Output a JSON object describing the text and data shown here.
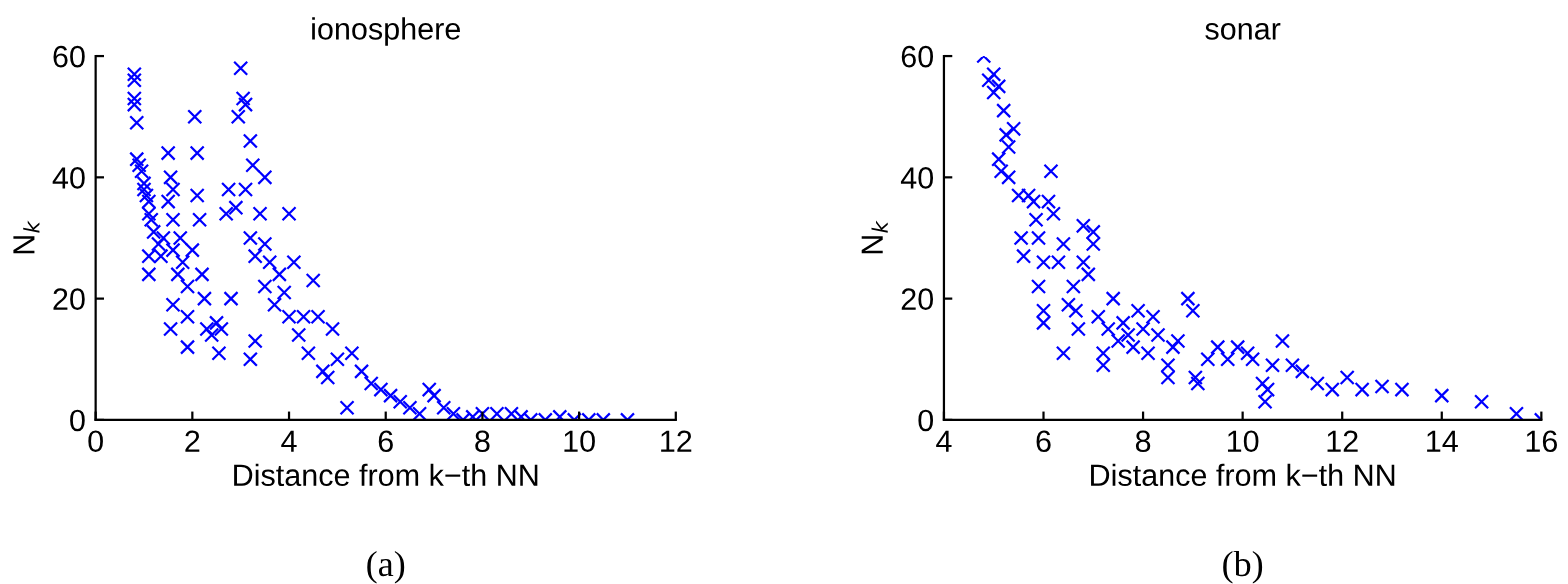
{
  "chart_data": [
    {
      "type": "scatter",
      "title": "ionosphere",
      "xlabel": "Distance from k−th NN",
      "ylabel": "N$_{k}$",
      "annotations": [
        "(a)"
      ],
      "marker": "cross",
      "grid": false,
      "legend": false,
      "xlim": [
        0,
        12
      ],
      "xticks": [
        0,
        2,
        4,
        6,
        8,
        10,
        12
      ],
      "ylim": [
        0,
        60
      ],
      "yticks": [
        0,
        20,
        40,
        60
      ],
      "series": [
        {
          "color": "#0000ff",
          "x": [
            0.8,
            0.8,
            0.8,
            0.8,
            0.85,
            0.85,
            0.9,
            0.95,
            1.0,
            1.0,
            1.05,
            1.1,
            1.1,
            1.15,
            1.2,
            1.1,
            1.1,
            1.3,
            1.35,
            1.4,
            1.5,
            1.5,
            1.55,
            1.6,
            1.6,
            1.6,
            1.6,
            1.55,
            1.7,
            1.75,
            1.8,
            1.9,
            1.9,
            1.9,
            2.0,
            2.05,
            2.1,
            2.1,
            2.15,
            2.2,
            2.25,
            2.3,
            2.4,
            2.5,
            2.55,
            2.6,
            2.7,
            2.8,
            2.75,
            2.9,
            2.95,
            3.0,
            3.05,
            3.1,
            3.1,
            3.2,
            3.25,
            3.2,
            3.3,
            3.3,
            3.2,
            3.4,
            3.5,
            3.5,
            3.5,
            3.6,
            3.7,
            3.8,
            3.9,
            4.0,
            4.0,
            4.1,
            4.2,
            4.3,
            4.4,
            4.5,
            4.6,
            4.7,
            4.8,
            4.9,
            5.0,
            5.2,
            5.3,
            5.5,
            5.7,
            5.9,
            6.1,
            6.3,
            6.5,
            6.7,
            6.9,
            7.0,
            7.2,
            7.4,
            7.6,
            7.8,
            8.0,
            8.3,
            8.6,
            8.8,
            9.0,
            9.3,
            9.6,
            9.9,
            10.2,
            10.5,
            11.0
          ],
          "values": [
            57,
            56,
            53,
            52,
            49,
            43,
            42,
            41,
            39,
            38,
            37,
            36,
            34,
            33,
            31,
            27,
            24,
            29,
            27,
            30,
            36,
            44,
            40,
            38,
            33,
            28,
            19,
            15,
            24,
            30,
            26,
            22,
            17,
            12,
            28,
            50,
            44,
            37,
            33,
            24,
            20,
            15,
            14,
            16,
            11,
            15,
            34,
            20,
            38,
            35,
            50,
            58,
            53,
            52,
            38,
            46,
            42,
            30,
            27,
            13,
            10,
            34,
            40,
            29,
            22,
            26,
            19,
            24,
            21,
            34,
            17,
            26,
            14,
            17,
            11,
            23,
            17,
            8,
            7,
            15,
            10,
            2,
            11,
            8,
            6,
            5,
            4,
            3,
            2,
            1,
            5,
            4,
            2,
            1,
            0,
            0.5,
            1,
            1,
            1,
            0.5,
            0,
            0,
            0.5,
            0,
            0,
            0,
            0
          ]
        }
      ]
    },
    {
      "type": "scatter",
      "title": "sonar",
      "xlabel": "Distance from k−th NN",
      "ylabel": "N$_{k}$",
      "annotations": [
        "(b)"
      ],
      "marker": "cross",
      "grid": false,
      "legend": false,
      "xlim": [
        4,
        16
      ],
      "xticks": [
        4,
        6,
        8,
        10,
        12,
        14,
        16
      ],
      "ylim": [
        0,
        60
      ],
      "yticks": [
        0,
        20,
        40,
        60
      ],
      "series": [
        {
          "color": "#0000ff",
          "x": [
            4.8,
            4.9,
            5.0,
            5.0,
            5.1,
            5.2,
            5.1,
            5.15,
            5.25,
            5.3,
            5.4,
            5.3,
            5.5,
            5.55,
            5.6,
            5.7,
            5.8,
            5.85,
            5.9,
            5.9,
            6.0,
            6.0,
            6.0,
            6.1,
            6.15,
            6.2,
            6.3,
            6.4,
            6.4,
            6.5,
            6.6,
            6.65,
            6.7,
            6.8,
            6.8,
            6.9,
            7.0,
            7.0,
            7.1,
            7.2,
            7.2,
            7.3,
            7.4,
            7.5,
            7.6,
            7.7,
            7.8,
            7.9,
            8.0,
            8.1,
            8.2,
            8.3,
            8.5,
            8.5,
            8.6,
            8.7,
            8.9,
            9.0,
            9.05,
            9.1,
            9.3,
            9.5,
            9.7,
            9.9,
            10.1,
            10.2,
            10.4,
            10.45,
            10.5,
            10.6,
            10.8,
            11.0,
            11.2,
            11.5,
            11.8,
            12.1,
            12.4,
            12.8,
            13.2,
            14.0,
            14.8,
            15.5,
            16.0
          ],
          "values": [
            60,
            56,
            54,
            57,
            55,
            51,
            43,
            41,
            47,
            45,
            48,
            40,
            37,
            30,
            27,
            37,
            36,
            33,
            30,
            22,
            18,
            16,
            26,
            36,
            41,
            34,
            26,
            29,
            11,
            19,
            22,
            18,
            15,
            26,
            32,
            24,
            31,
            29,
            17,
            9,
            11,
            15,
            20,
            13,
            16,
            14,
            12,
            18,
            15,
            11,
            17,
            14,
            9,
            7,
            12,
            13,
            20,
            18,
            7,
            6,
            10,
            12,
            10,
            12,
            11,
            10,
            6,
            3,
            5,
            9,
            13,
            9,
            8,
            6,
            5,
            7,
            5,
            5.5,
            5,
            4,
            3,
            1,
            0
          ]
        }
      ]
    }
  ]
}
